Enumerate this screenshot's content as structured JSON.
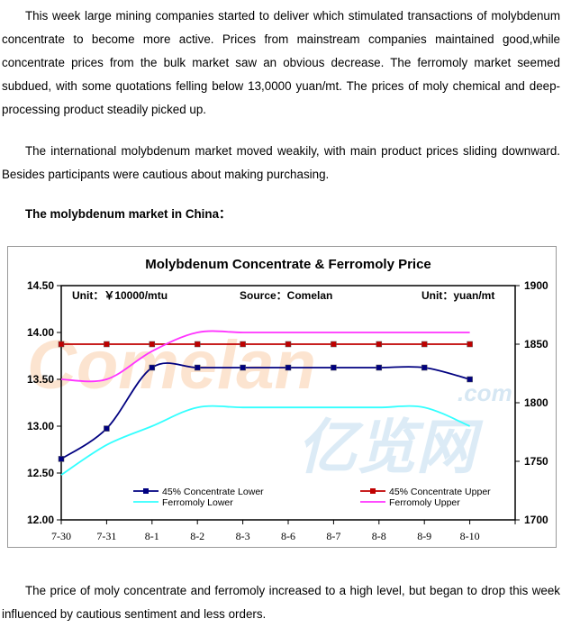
{
  "article": {
    "paragraph_1": "This week large mining companies started to deliver which stimulated transactions of molybdenum concentrate to become more active. Prices from mainstream companies maintained good,while concentrate prices from the bulk market saw an obvious decrease. The ferromoly market seemed subdued, with some quotations felling below 13,0000 yuan/mt. The prices of moly chemical and deep-processing product steadily picked up.",
    "paragraph_2": "The international molybdenum market moved weakily, with main product prices sliding downward. Besides participants were cautious about making purchasing.",
    "section_heading": "The molybdenum market in China：",
    "paragraph_3": "The price of moly concentrate and ferromoly increased to a high level, but began to drop this week influenced by cautious sentiment and less orders."
  },
  "watermark": {
    "text": "Comelan",
    "suffix": ".com",
    "cn_text": "亿览网"
  },
  "chart_data": {
    "type": "line",
    "title": "Molybdenum Concentrate & Ferromoly Price",
    "annotations": {
      "unit_left": "Unit：￥10000/mtu",
      "source": "Source：Comelan",
      "unit_right": "Unit：yuan/mt"
    },
    "categories": [
      "7-30",
      "7-31",
      "8-1",
      "8-2",
      "8-3",
      "8-6",
      "8-7",
      "8-8",
      "8-9",
      "8-10"
    ],
    "y_left": {
      "ticks": [
        "12.00",
        "12.50",
        "13.00",
        "13.50",
        "14.00",
        "14.50"
      ],
      "min": 12.0,
      "max": 14.5
    },
    "y_right": {
      "ticks": [
        "1700",
        "1750",
        "1800",
        "1850",
        "1900"
      ],
      "min": 1700,
      "max": 1900
    },
    "grid": false,
    "legend_position": "bottom",
    "series": [
      {
        "name": "45% Concentrate Lower",
        "axis": "right",
        "color": "#000080",
        "marker": "square",
        "values": [
          1752,
          1778,
          1830,
          1830,
          1830,
          1830,
          1830,
          1830,
          1830,
          1820
        ]
      },
      {
        "name": "45% Concentrate Upper",
        "axis": "right",
        "color": "#c00000",
        "marker": "square",
        "values": [
          1850,
          1850,
          1850,
          1850,
          1850,
          1850,
          1850,
          1850,
          1850,
          1850
        ]
      },
      {
        "name": "Ferromoly Lower",
        "axis": "left",
        "color": "#33ffff",
        "marker": "none",
        "values": [
          12.48,
          12.8,
          13.0,
          13.2,
          13.2,
          13.2,
          13.2,
          13.2,
          13.2,
          13.0
        ]
      },
      {
        "name": "Ferromoly Upper",
        "axis": "left",
        "color": "#ff33ff",
        "marker": "none",
        "values": [
          13.5,
          13.5,
          13.8,
          14.0,
          14.0,
          14.0,
          14.0,
          14.0,
          14.0,
          14.0
        ]
      }
    ]
  }
}
